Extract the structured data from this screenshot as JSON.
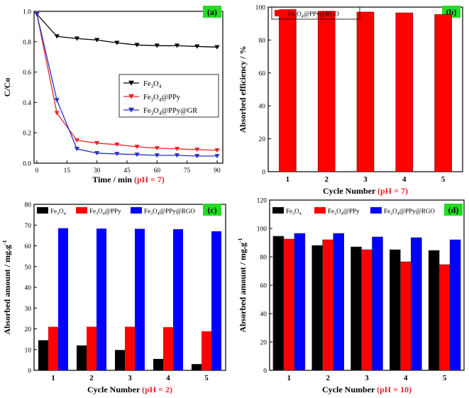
{
  "chart_data": [
    {
      "type": "line",
      "panel_label": "(a)",
      "xlabel": "Time / min",
      "xlabel_note": "(pH = 7)",
      "ylabel": "C/Co",
      "xlim": [
        0,
        90
      ],
      "ylim": [
        0,
        1.0
      ],
      "xticks": [
        "0",
        "15",
        "30",
        "45",
        "60",
        "75",
        "90"
      ],
      "yticks": [
        "0.0",
        "0.2",
        "0.4",
        "0.6",
        "0.8",
        "1.0"
      ],
      "legend": "middle-right",
      "series": [
        {
          "name": "Fe3O4",
          "base": "Fe",
          "sub1": "3",
          "mid": "O",
          "sub2": "4",
          "tail": "",
          "color": "#000000",
          "marker": "triangle-down",
          "x": [
            0,
            10,
            20,
            30,
            40,
            50,
            60,
            70,
            80,
            90
          ],
          "y": [
            1.0,
            0.845,
            0.83,
            0.82,
            0.8,
            0.785,
            0.78,
            0.78,
            0.775,
            0.77
          ]
        },
        {
          "name": "Fe3O4@PPy",
          "base": "Fe",
          "sub1": "3",
          "mid": "O",
          "sub2": "4",
          "tail": "@PPy",
          "color": "#e8262b",
          "marker": "triangle-down",
          "x": [
            0,
            10,
            20,
            30,
            40,
            50,
            60,
            70,
            80,
            90
          ],
          "y": [
            1.0,
            0.31,
            0.12,
            0.1,
            0.09,
            0.075,
            0.065,
            0.06,
            0.055,
            0.05
          ]
        },
        {
          "name": "Fe3O4@PPy@GR",
          "base": "Fe",
          "sub1": "3",
          "mid": "O",
          "sub2": "4",
          "tail": "@PPy@GR",
          "color": "#2431c9",
          "marker": "triangle-down",
          "x": [
            0,
            10,
            20,
            30,
            40,
            50,
            60,
            70,
            80,
            90
          ],
          "y": [
            1.0,
            0.4,
            0.06,
            0.03,
            0.025,
            0.02,
            0.015,
            0.015,
            0.01,
            0.01
          ]
        }
      ]
    },
    {
      "type": "bar",
      "panel_label": "(b)",
      "xlabel": "Cycle Number",
      "xlabel_note": "(pH = 7)",
      "ylabel": "Absorbed efficiency / %",
      "ylim": [
        0,
        100
      ],
      "yticks": [
        "0",
        "20",
        "40",
        "60",
        "80",
        "100"
      ],
      "categories": [
        "1",
        "2",
        "3",
        "4",
        "5"
      ],
      "legend": "top-left",
      "series": [
        {
          "name": "Fe3O4@PPy@RGO",
          "base": "Fe",
          "sub1": "3",
          "mid": "O",
          "sub2": "4",
          "tail": "@PPy@RGO",
          "color": "#ff0000",
          "values": [
            98.5,
            97.5,
            97.0,
            96.5,
            95.5
          ]
        }
      ]
    },
    {
      "type": "bar",
      "panel_label": "(c)",
      "xlabel": "Cycle Number",
      "xlabel_note": "(pH = 2)",
      "ylabel": "Absorbed amount / mg.g",
      "ylabel_sup": "-1",
      "ylim": [
        0,
        80
      ],
      "yticks": [
        "0",
        "10",
        "20",
        "30",
        "40",
        "50",
        "60",
        "70",
        "80"
      ],
      "categories": [
        "1",
        "2",
        "3",
        "4",
        "5"
      ],
      "legend": "top",
      "series": [
        {
          "name": "Fe3O4",
          "base": "Fe",
          "sub1": "3",
          "mid": "O",
          "sub2": "4",
          "tail": "",
          "color": "#000000",
          "values": [
            14.5,
            12.0,
            9.8,
            5.5,
            3.0
          ]
        },
        {
          "name": "Fe3O4@PPy",
          "base": "Fe",
          "sub1": "3",
          "mid": "O",
          "sub2": "4",
          "tail": "@PPy",
          "color": "#ff0000",
          "values": [
            21.0,
            21.0,
            21.0,
            20.8,
            18.8
          ]
        },
        {
          "name": "Fe3O4@PPy@RGO",
          "base": "Fe",
          "sub1": "3",
          "mid": "O",
          "sub2": "4",
          "tail": "@PPy@RGO",
          "color": "#0000ff",
          "values": [
            68.5,
            68.3,
            68.2,
            68.0,
            67.0
          ]
        }
      ]
    },
    {
      "type": "bar",
      "panel_label": "(d)",
      "xlabel": "Cycle Number",
      "xlabel_note": "(pH = 10)",
      "ylabel": "Absorbed amount / mg.g",
      "ylabel_sup": "-1",
      "ylim": [
        0,
        120
      ],
      "yticks": [
        "0",
        "20",
        "40",
        "60",
        "80",
        "100",
        "120"
      ],
      "categories": [
        "1",
        "2",
        "3",
        "4",
        "5"
      ],
      "legend": "top",
      "series": [
        {
          "name": "Fe3O4",
          "base": "Fe",
          "sub1": "3",
          "mid": "O",
          "sub2": "4",
          "tail": "",
          "color": "#000000",
          "values": [
            94.5,
            88.0,
            87.0,
            85.0,
            84.5
          ]
        },
        {
          "name": "Fe3O4@PPy",
          "base": "Fe",
          "sub1": "3",
          "mid": "O",
          "sub2": "4",
          "tail": "@PPy",
          "color": "#ff0000",
          "values": [
            92.5,
            92.0,
            85.0,
            76.5,
            74.5
          ]
        },
        {
          "name": "Fe3O4@PPy@RGO",
          "base": "Fe",
          "sub1": "3",
          "mid": "O",
          "sub2": "4",
          "tail": "@PPy@RGO",
          "color": "#0000ff",
          "values": [
            96.5,
            96.5,
            94.0,
            93.5,
            92.0
          ]
        }
      ]
    }
  ],
  "colors": {
    "panel_label_bg": "#22dd22",
    "note_red": "#e8262b"
  }
}
